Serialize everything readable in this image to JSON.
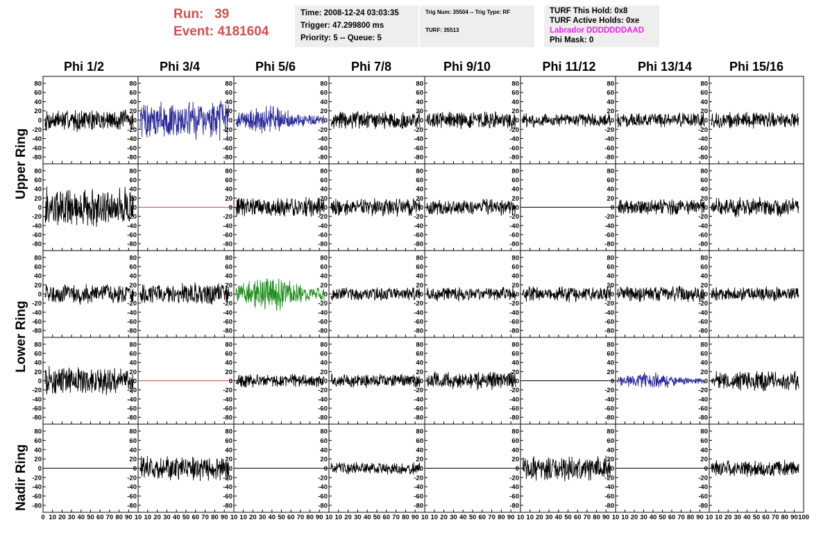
{
  "run_label": "Run:",
  "run_value": "39",
  "event_label": "Event:",
  "event_value": "4181604",
  "time_box": {
    "time": "Time: 2008-12-24 03:03:35",
    "trigger": "Trigger: 47.299800 ms",
    "priority": "Priority: 5 -- Queue: 5"
  },
  "trig_box": {
    "trig_num": "Trig Num: 35504 -- Trig Type: RF",
    "turf": "TURF: 35513"
  },
  "turf_box": {
    "this_hold": "TURF This Hold: 0x8",
    "active_holds": "TURF Active Holds: 0xe",
    "labrador": "Labrador DDDDDDDAAD",
    "phi_mask": "Phi Mask: 0"
  },
  "colors": {
    "trace_black": "#000000",
    "trace_blue": "#2a2a9a",
    "trace_green": "#1f8f1f",
    "trace_red": "#c05050",
    "title_red": "#d05050",
    "info_bg": "#eeeeee"
  },
  "chart_data": {
    "type": "line",
    "columns": [
      "Phi 1/2",
      "Phi 3/4",
      "Phi 5/6",
      "Phi 7/8",
      "Phi 9/10",
      "Phi 11/12",
      "Phi 13/14",
      "Phi 15/16"
    ],
    "ring_labels": [
      "Upper Ring",
      "Lower Ring",
      "Nadir Ring"
    ],
    "ylim": [
      -95,
      95
    ],
    "xlim": [
      0,
      100
    ],
    "y_ticks": [
      "80",
      "60",
      "40",
      "20",
      "0",
      "-20",
      "-40",
      "-60",
      "-80"
    ],
    "x_ticks_first": [
      "0",
      "10",
      "20",
      "30",
      "40",
      "50",
      "60",
      "70",
      "80",
      "90",
      "10"
    ],
    "x_ticks_mid": [
      "10",
      "20",
      "30",
      "40",
      "50",
      "60",
      "70",
      "80",
      "90",
      "10"
    ],
    "x_ticks_last": [
      "10",
      "20",
      "30",
      "40",
      "50",
      "60",
      "70",
      "80",
      "90",
      "100"
    ],
    "cells": [
      [
        {
          "amp": 22,
          "color": "black"
        },
        {
          "amp": 38,
          "color": "blue"
        },
        {
          "amp": 22,
          "color": "blue",
          "pulse": true
        },
        {
          "amp": 18,
          "color": "black"
        },
        {
          "amp": 18,
          "color": "black"
        },
        {
          "amp": 14,
          "color": "black"
        },
        {
          "amp": 14,
          "color": "black"
        },
        {
          "amp": 16,
          "color": "black"
        }
      ],
      [
        {
          "amp": 40,
          "color": "black"
        },
        {
          "amp": 0,
          "color": "red"
        },
        {
          "amp": 20,
          "color": "black"
        },
        {
          "amp": 18,
          "color": "black"
        },
        {
          "amp": 16,
          "color": "black"
        },
        {
          "amp": 0,
          "color": "black"
        },
        {
          "amp": 16,
          "color": "black"
        },
        {
          "amp": 20,
          "color": "black"
        }
      ],
      [
        {
          "amp": 20,
          "color": "black"
        },
        {
          "amp": 22,
          "color": "black"
        },
        {
          "amp": 30,
          "color": "green",
          "pulse": true
        },
        {
          "amp": 14,
          "color": "black"
        },
        {
          "amp": 14,
          "color": "black"
        },
        {
          "amp": 16,
          "color": "black"
        },
        {
          "amp": 16,
          "color": "black"
        },
        {
          "amp": 14,
          "color": "black"
        }
      ],
      [
        {
          "amp": 28,
          "color": "black"
        },
        {
          "amp": 0,
          "color": "red"
        },
        {
          "amp": 14,
          "color": "black"
        },
        {
          "amp": 14,
          "color": "black"
        },
        {
          "amp": 18,
          "color": "black"
        },
        {
          "amp": 0,
          "color": "black"
        },
        {
          "amp": 14,
          "color": "blue",
          "pulse": true
        },
        {
          "amp": 20,
          "color": "black"
        }
      ],
      [
        {
          "amp": 0,
          "color": "black"
        },
        {
          "amp": 24,
          "color": "black"
        },
        {
          "amp": 0,
          "color": "black"
        },
        {
          "amp": 12,
          "color": "black"
        },
        {
          "amp": 0,
          "color": "black"
        },
        {
          "amp": 24,
          "color": "black"
        },
        {
          "amp": 0,
          "color": "black"
        },
        {
          "amp": 16,
          "color": "black"
        }
      ]
    ]
  }
}
